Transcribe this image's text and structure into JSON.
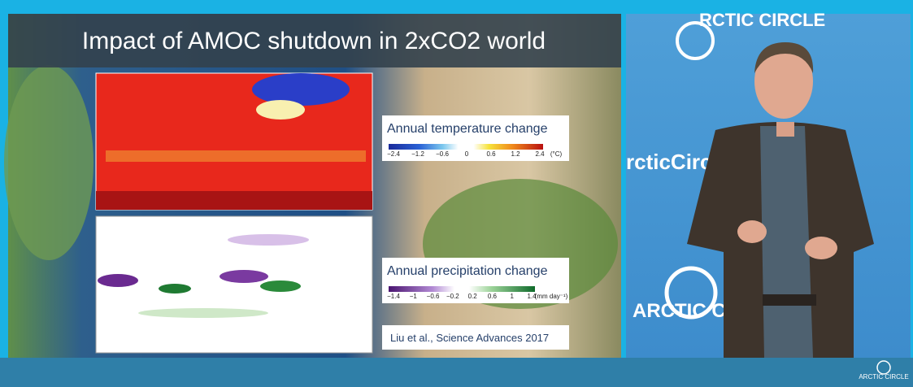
{
  "slide": {
    "title": "Impact of AMOC shutdown in 2xCO2 world",
    "temperature_legend": {
      "title": "Annual temperature change",
      "ticks": [
        "−2.4",
        "−1.2",
        "−0.6",
        "0",
        "0.6",
        "1.2",
        "2.4"
      ],
      "unit": "(°C)"
    },
    "precipitation_legend": {
      "title": "Annual precipitation change",
      "ticks": [
        "−1.4",
        "−1",
        "−0.6",
        "−0.2",
        "0.2",
        "0.6",
        "1",
        "1.4"
      ],
      "unit": "(mm day⁻¹)"
    },
    "citation": "Liu et al., Science Advances 2017"
  },
  "backdrop": {
    "logo_top": "RCTIC CIRCLE",
    "logo_middle": "rcticCircle",
    "logo_lower": "ARCTIC CIRCLE"
  },
  "footer": {
    "logo": "ARCTIC CIRCLE"
  }
}
